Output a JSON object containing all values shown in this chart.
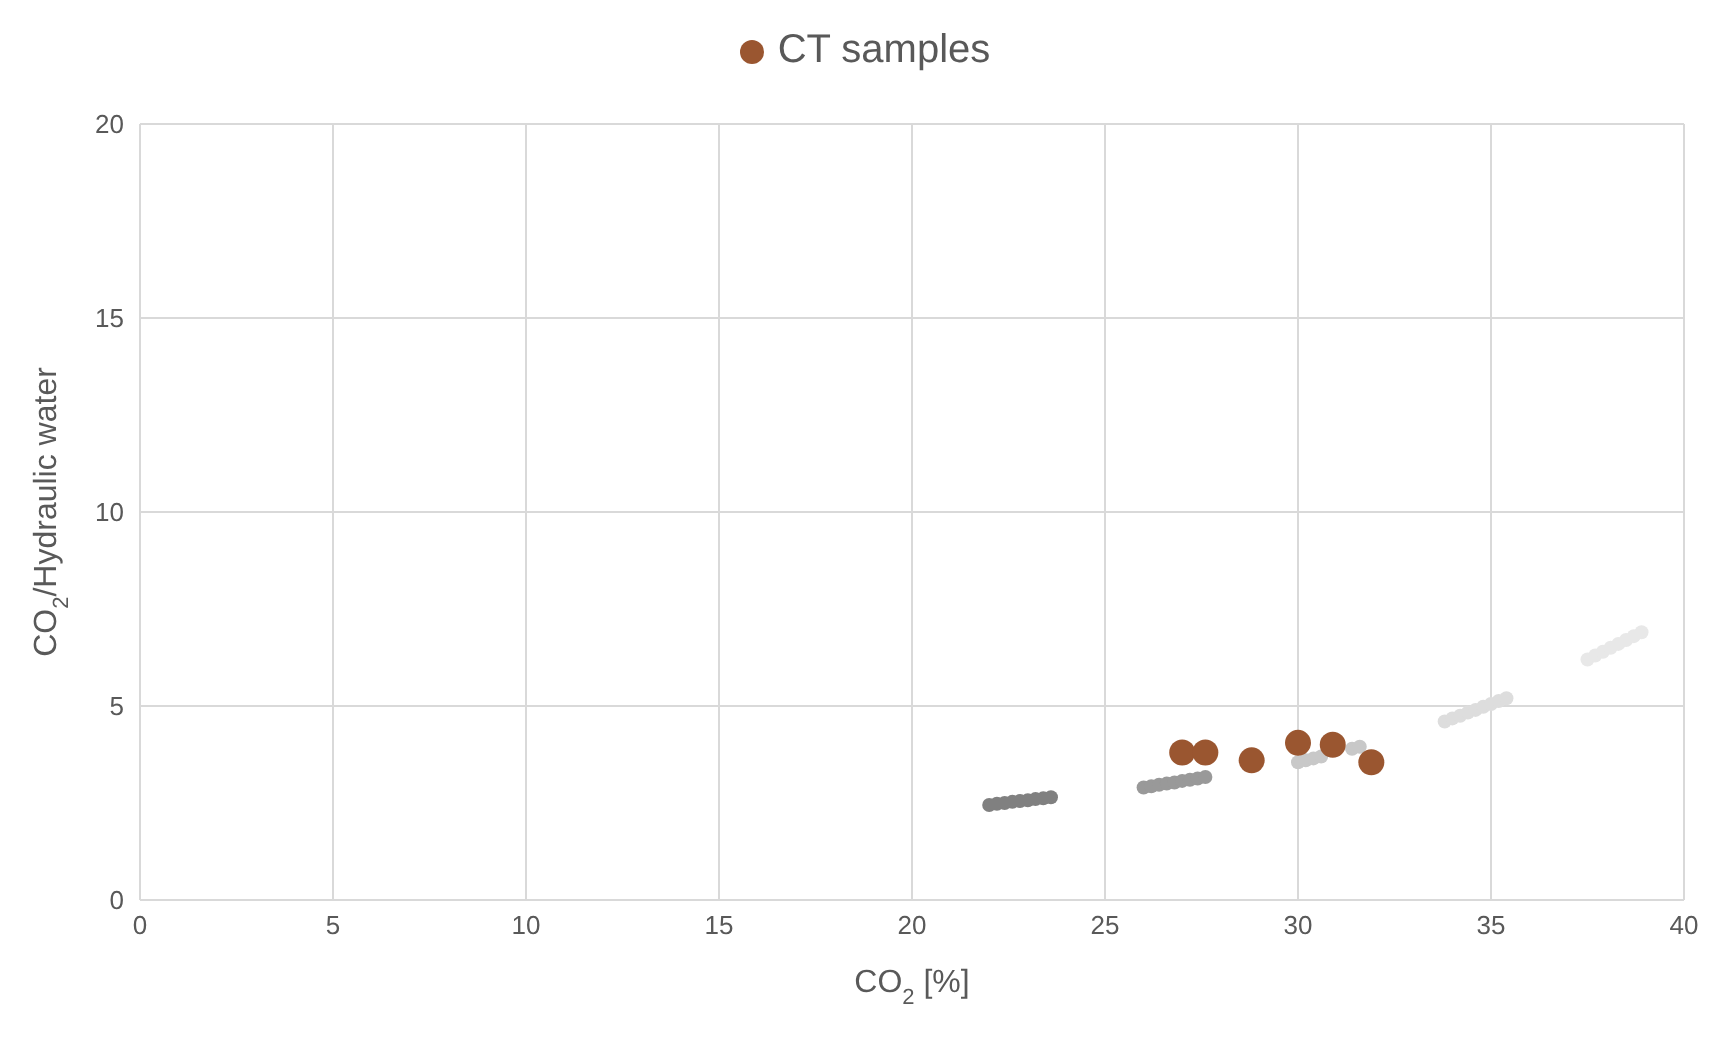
{
  "chart_data": {
    "type": "scatter",
    "xlabel": "CO$_{2}$ [%]",
    "ylabel": "CO$_{2}$/Hydraulic water",
    "xlim": [
      0,
      40
    ],
    "xticks": [
      0,
      5,
      10,
      15,
      20,
      25,
      30,
      35,
      40
    ],
    "ylim": [
      0,
      20
    ],
    "yticks": [
      0,
      5,
      10,
      15,
      20
    ],
    "grid": true,
    "legend": "top",
    "marker": "circle",
    "series": [
      {
        "color": "#808080",
        "x": [
          22.0,
          22.2,
          22.4,
          22.6,
          22.8,
          23.0,
          23.2,
          23.4,
          23.6
        ],
        "values": [
          2.45,
          2.48,
          2.5,
          2.53,
          2.55,
          2.57,
          2.6,
          2.62,
          2.65
        ]
      },
      {
        "color": "#999999",
        "x": [
          26.0,
          26.2,
          26.4,
          26.6,
          26.8,
          27.0,
          27.2,
          27.4,
          27.6
        ],
        "values": [
          2.9,
          2.93,
          2.97,
          3.0,
          3.03,
          3.07,
          3.1,
          3.13,
          3.17
        ]
      },
      {
        "color": "#c8c8c8",
        "x": [
          30.0,
          30.2,
          30.4,
          30.6,
          30.8,
          31.0,
          31.2,
          31.4,
          31.6
        ],
        "values": [
          3.55,
          3.6,
          3.65,
          3.7,
          null,
          null,
          null,
          3.9,
          3.95
        ]
      },
      {
        "color": "#dddddd",
        "x": [
          33.8,
          34.0,
          34.2,
          34.4,
          34.6,
          34.8,
          35.0,
          35.2,
          35.4
        ],
        "values": [
          4.6,
          4.68,
          4.75,
          4.83,
          4.9,
          4.98,
          5.05,
          5.13,
          5.2
        ]
      },
      {
        "color": "#e8e8e8",
        "x": [
          37.5,
          37.7,
          37.9,
          38.1,
          38.3,
          38.5,
          38.7,
          38.9
        ],
        "values": [
          6.2,
          6.3,
          6.4,
          6.5,
          6.6,
          6.7,
          6.8,
          6.9
        ]
      },
      {
        "name": "CT samples",
        "color": "#9a5630",
        "x": [
          27.0,
          27.6,
          28.8,
          30.0,
          30.9,
          31.9
        ],
        "values": [
          3.8,
          3.8,
          3.6,
          4.05,
          4.0,
          3.55
        ]
      }
    ]
  }
}
